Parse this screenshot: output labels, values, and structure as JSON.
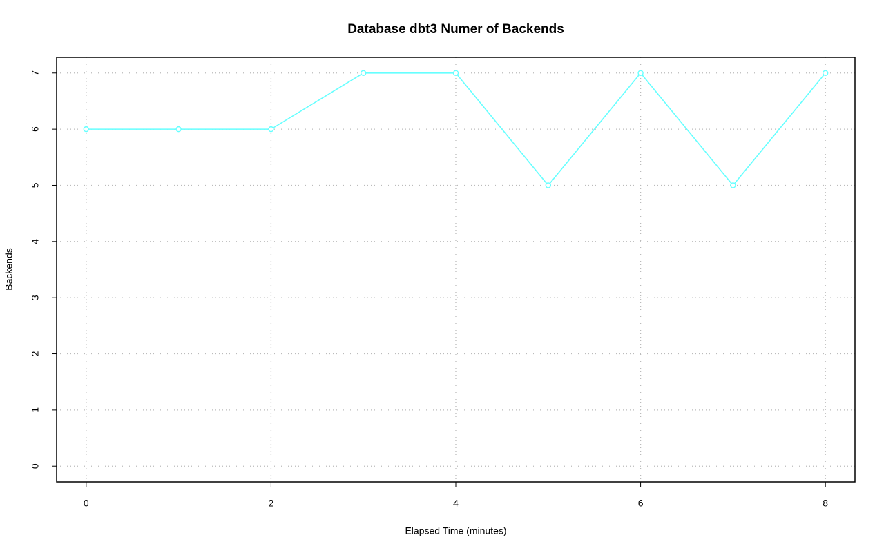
{
  "chart_data": {
    "type": "line",
    "title": "Database dbt3 Numer of Backends",
    "x_label": "Elapsed Time (minutes)",
    "y_label": "Backends",
    "x": [
      0,
      1,
      2,
      3,
      4,
      5,
      6,
      7,
      8
    ],
    "values": [
      6,
      6,
      6,
      7,
      7,
      5,
      7,
      5,
      7
    ],
    "color": "#66ffff",
    "xlim": [
      -0.32,
      8.32
    ],
    "xticks": [
      0,
      2,
      4,
      6,
      8
    ],
    "ylim": [
      -0.28,
      7.28
    ],
    "yticks": [
      0,
      1,
      2,
      3,
      4,
      5,
      6,
      7
    ],
    "grid": true
  }
}
